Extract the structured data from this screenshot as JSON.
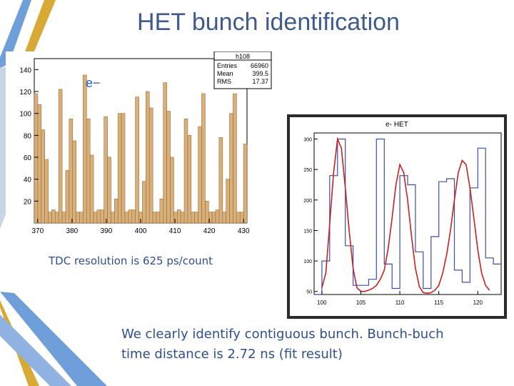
{
  "slide": {
    "title": "HET bunch identification",
    "caption": "TDC resolution is 625 ps/count",
    "conclusion_line1": "We clearly identify contiguous bunch. Bunch-buch",
    "conclusion_line2": "time distance is 2.72 ns (fit result)"
  },
  "colors": {
    "title": "#3f5a8e",
    "text": "#2f4f8f",
    "hist_fill": "#d8b07c",
    "fit_curve": "#cc1f1f",
    "fit_hist": "#3b4fa8",
    "deco_blue": "#6f9fd8",
    "deco_gold": "#d9a935"
  },
  "chart_data": [
    {
      "type": "bar",
      "title": "",
      "particle_label": "e−",
      "stats": {
        "name": "h108",
        "rows": [
          {
            "label": "Entries",
            "value": "66960"
          },
          {
            "label": "Mean",
            "value": "399.5"
          },
          {
            "label": "RMS",
            "value": "17.37"
          }
        ]
      },
      "xlim": [
        369,
        431
      ],
      "ylim": [
        0,
        150
      ],
      "xticks": [
        370,
        380,
        390,
        400,
        410,
        420,
        430
      ],
      "yticks": [
        20,
        40,
        60,
        80,
        100,
        120,
        140
      ],
      "values": [
        118,
        108,
        85,
        58,
        10,
        12,
        10,
        122,
        10,
        48,
        95,
        75,
        10,
        10,
        135,
        95,
        62,
        10,
        12,
        12,
        97,
        60,
        10,
        22,
        100,
        100,
        10,
        12,
        12,
        115,
        10,
        38,
        120,
        105,
        10,
        10,
        22,
        128,
        102,
        60,
        10,
        12,
        10,
        95,
        80,
        10,
        10,
        88,
        118,
        20,
        10,
        10,
        12,
        78,
        10,
        40,
        100,
        118,
        10,
        10,
        72
      ]
    },
    {
      "type": "line",
      "title": "e- HET",
      "xlim": [
        99,
        123
      ],
      "ylim": [
        45,
        310
      ],
      "xticks": [
        100,
        105,
        110,
        115,
        120
      ],
      "yticks": [
        50,
        100,
        150,
        200,
        250,
        300
      ],
      "series": [
        {
          "type": "step",
          "x": [
            99,
            100,
            101,
            102,
            103,
            104,
            105,
            106,
            107,
            108,
            109,
            110,
            111,
            112,
            113,
            114,
            115,
            116,
            117,
            118,
            119,
            120,
            121,
            122
          ],
          "values": [
            45,
            100,
            240,
            300,
            125,
            60,
            60,
            70,
            300,
            95,
            55,
            240,
            225,
            115,
            55,
            140,
            230,
            235,
            85,
            65,
            220,
            285,
            105,
            95
          ]
        },
        {
          "type": "fit",
          "x": [
            100.0,
            100.5,
            101.0,
            101.5,
            102.0,
            102.5,
            103.0,
            103.5,
            104.0,
            104.5,
            105.0,
            105.5,
            106.0,
            106.5,
            107.0,
            107.5,
            108.0,
            108.5,
            109.0,
            109.5,
            110.0,
            110.5,
            111.0,
            111.5,
            112.0,
            112.5,
            113.0,
            113.5,
            114.0,
            114.5,
            115.0,
            115.5,
            116.0,
            116.5,
            117.0,
            117.5,
            118.0,
            118.5,
            119.0,
            119.5,
            120.0,
            120.5,
            121.0,
            121.5
          ],
          "values": [
            56,
            80,
            160,
            245,
            300,
            285,
            220,
            150,
            88,
            56,
            50,
            50,
            52,
            55,
            60,
            70,
            85,
            120,
            170,
            225,
            258,
            245,
            200,
            140,
            88,
            58,
            48,
            47,
            48,
            52,
            60,
            80,
            110,
            150,
            200,
            245,
            265,
            258,
            220,
            170,
            118,
            80,
            60,
            52
          ]
        }
      ]
    }
  ]
}
